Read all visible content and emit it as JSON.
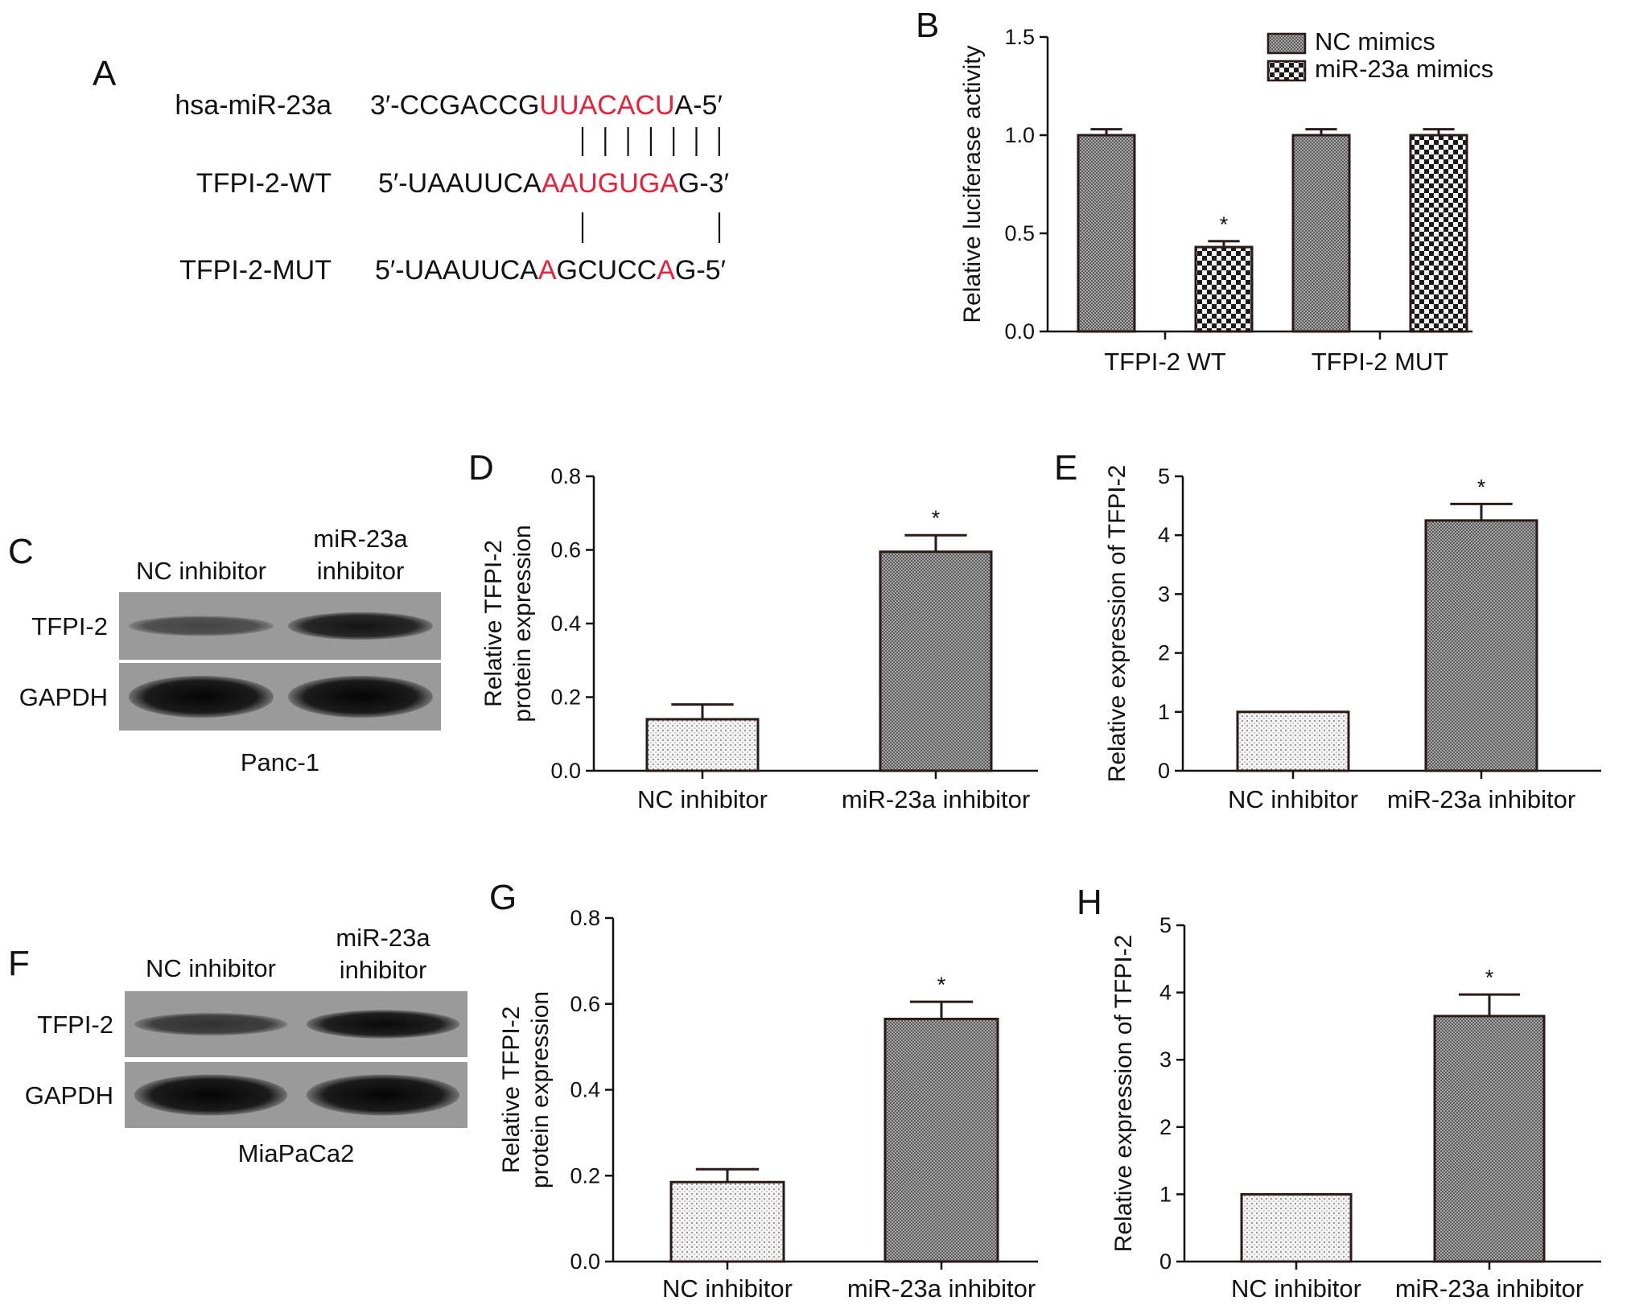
{
  "panels": {
    "A": {
      "letter": "A",
      "rows": [
        {
          "label": "hsa-miR-23a",
          "segments": [
            {
              "text": "3′-CCGACCG",
              "highlight": false
            },
            {
              "text": "UUACACU",
              "highlight": true
            },
            {
              "text": "A-5′",
              "highlight": false
            }
          ]
        },
        {
          "label": "TFPI-2-WT",
          "segments": [
            {
              "text": "5′-UAAUUCA",
              "highlight": false
            },
            {
              "text": "AAUGUGA",
              "highlight": true
            },
            {
              "text": "G-3′",
              "highlight": false
            }
          ]
        },
        {
          "label": "TFPI-2-MUT",
          "segments": [
            {
              "text": "5′-UAAUUCA",
              "highlight": false
            },
            {
              "text": "A",
              "highlight": true
            },
            {
              "text": "GCUCC",
              "highlight": false
            },
            {
              "text": "A",
              "highlight": true
            },
            {
              "text": "G-5′",
              "highlight": false
            }
          ]
        }
      ],
      "pairing_upper_count": 7,
      "pairing_lower_count": 2
    },
    "C": {
      "letter": "C",
      "lanes": [
        "NC inhibitor",
        "miR-23a\ninhibitor"
      ],
      "bands": [
        "TFPI-2",
        "GAPDH"
      ],
      "cell_line": "Panc-1",
      "intensity": {
        "TFPI-2": [
          0.35,
          0.85
        ],
        "GAPDH": [
          1.0,
          1.0
        ]
      }
    },
    "F": {
      "letter": "F",
      "lanes": [
        "NC inhibitor",
        "miR-23a\ninhibitor"
      ],
      "bands": [
        "TFPI-2",
        "GAPDH"
      ],
      "cell_line": "MiaPaCa2",
      "intensity": {
        "TFPI-2": [
          0.55,
          0.95
        ],
        "GAPDH": [
          1.0,
          1.0
        ]
      }
    }
  },
  "colors": {
    "text": "#111111",
    "highlight": "#e8203a",
    "axis": "#111111",
    "bar_edge": "#2a1a1a",
    "dark_bar": "#8a8a8a",
    "light_bar": "#e4e4e4",
    "blot_bg": "#9a9a9a"
  },
  "chart_data": [
    {
      "id": "B",
      "letter": "B",
      "type": "bar",
      "categories": [
        "TFPI-2 WT",
        "TFPI-2 MUT"
      ],
      "series": [
        {
          "name": "NC mimics",
          "values": [
            1.0,
            1.0
          ],
          "errors": [
            0.03,
            0.03
          ],
          "pattern": "dense"
        },
        {
          "name": "miR-23a mimics",
          "values": [
            0.43,
            1.0
          ],
          "errors": [
            0.03,
            0.03
          ],
          "pattern": "checker"
        }
      ],
      "significance": [
        [
          "",
          "*"
        ],
        [
          "",
          ""
        ]
      ],
      "ylabel": "Relative luciferase activity",
      "ylim": [
        0,
        1.5
      ],
      "yticks": [
        "0.0",
        "0.5",
        "1.0",
        "1.5"
      ],
      "legend": "top-right"
    },
    {
      "id": "D",
      "letter": "D",
      "type": "bar",
      "categories": [
        "NC inhibitor",
        "miR-23a inhibitor"
      ],
      "values": [
        0.14,
        0.595
      ],
      "errors": [
        0.04,
        0.045
      ],
      "patterns": [
        "dots",
        "dense"
      ],
      "significance": [
        "",
        "*"
      ],
      "ylabel": "Relative TFPI-2\nprotein expression",
      "ylim": [
        0,
        0.8
      ],
      "yticks": [
        "0.0",
        "0.2",
        "0.4",
        "0.6",
        "0.8"
      ]
    },
    {
      "id": "E",
      "letter": "E",
      "type": "bar",
      "categories": [
        "NC inhibitor",
        "miR-23a inhibitor"
      ],
      "values": [
        1.0,
        4.25
      ],
      "errors": [
        0.0,
        0.28
      ],
      "patterns": [
        "dots",
        "dense"
      ],
      "significance": [
        "",
        "*"
      ],
      "ylabel": "Relative expression of TFPI-2",
      "ylim": [
        0,
        5
      ],
      "yticks": [
        "0",
        "1",
        "2",
        "3",
        "4",
        "5"
      ]
    },
    {
      "id": "G",
      "letter": "G",
      "type": "bar",
      "categories": [
        "NC inhibitor",
        "miR-23a inhibitor"
      ],
      "values": [
        0.185,
        0.565
      ],
      "errors": [
        0.03,
        0.04
      ],
      "patterns": [
        "dots",
        "dense"
      ],
      "significance": [
        "",
        "*"
      ],
      "ylabel": "Relative TFPI-2\nprotein expression",
      "ylim": [
        0,
        0.8
      ],
      "yticks": [
        "0.0",
        "0.2",
        "0.4",
        "0.6",
        "0.8"
      ]
    },
    {
      "id": "H",
      "letter": "H",
      "type": "bar",
      "categories": [
        "NC inhibitor",
        "miR-23a inhibitor"
      ],
      "values": [
        1.0,
        3.65
      ],
      "errors": [
        0.0,
        0.32
      ],
      "patterns": [
        "dots",
        "dense"
      ],
      "significance": [
        "",
        "*"
      ],
      "ylabel": "Relative expression of TFPI-2",
      "ylim": [
        0,
        5
      ],
      "yticks": [
        "0",
        "1",
        "2",
        "3",
        "4",
        "5"
      ]
    }
  ]
}
